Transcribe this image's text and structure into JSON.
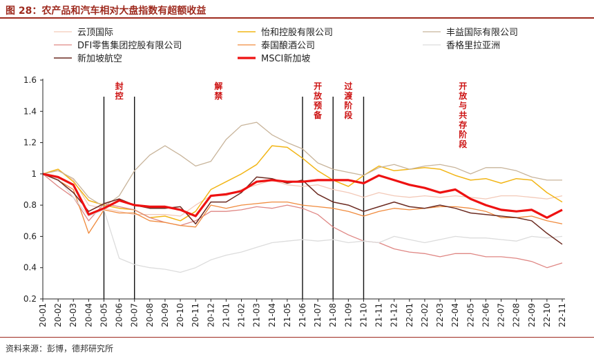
{
  "title": "图 28：农产品和汽车相对大盘指数有超额收益",
  "source": "资料来源：彭博，德邦研究所",
  "chart_data": {
    "type": "line",
    "title": "图 28：农产品和汽车相对大盘指数有超额收益",
    "xlabel": "",
    "ylabel": "",
    "ylim": [
      0.2,
      1.6
    ],
    "yticks": [
      0.2,
      0.4,
      0.6,
      0.8,
      1,
      1.2,
      1.4,
      1.6
    ],
    "x": [
      "20-01",
      "20-02",
      "20-03",
      "20-04",
      "20-05",
      "20-06",
      "20-07",
      "20-08",
      "20-09",
      "20-10",
      "20-11",
      "20-12",
      "21-01",
      "21-02",
      "21-03",
      "21-04",
      "21-05",
      "21-06",
      "21-07",
      "21-08",
      "21-09",
      "21-10",
      "21-11",
      "21-12",
      "22-01",
      "22-02",
      "22-03",
      "22-04",
      "22-05",
      "22-06",
      "22-07",
      "22-08",
      "22-09",
      "22-10",
      "22-11"
    ],
    "grid": false,
    "legend_position": "top",
    "phases": [
      {
        "label": "封控",
        "start": 4,
        "end": 6
      },
      {
        "label": "解禁",
        "start": 6,
        "end": 17
      },
      {
        "label": "开放预备",
        "start": 17,
        "end": 19
      },
      {
        "label": "过渡阶段",
        "start": 19,
        "end": 21
      },
      {
        "label": "开放与共存阶段",
        "start": 21,
        "end": 34
      }
    ],
    "series": [
      {
        "name": "云顶国际",
        "color": "#f3c9b8",
        "width": 1.3,
        "values": [
          1.0,
          1.03,
          0.96,
          0.8,
          0.78,
          0.76,
          0.74,
          0.74,
          0.74,
          0.73,
          0.8,
          0.86,
          0.86,
          0.9,
          0.93,
          0.96,
          0.93,
          0.92,
          0.93,
          0.9,
          0.88,
          0.85,
          0.88,
          0.86,
          0.85,
          0.86,
          0.85,
          0.86,
          0.85,
          0.84,
          0.86,
          0.86,
          0.85,
          0.84,
          0.86
        ]
      },
      {
        "name": "怡和控股有限公司",
        "color": "#f2b515",
        "width": 1.5,
        "values": [
          1.0,
          1.03,
          0.95,
          0.83,
          0.8,
          0.78,
          0.77,
          0.72,
          0.73,
          0.7,
          0.76,
          0.9,
          0.95,
          1.0,
          1.06,
          1.18,
          1.17,
          1.1,
          1.02,
          0.96,
          0.92,
          0.99,
          1.05,
          1.02,
          1.03,
          1.04,
          1.03,
          0.99,
          0.96,
          0.97,
          0.94,
          0.97,
          0.96,
          0.88,
          0.82
        ]
      },
      {
        "name": "丰益国际有限公司",
        "color": "#c8b49a",
        "width": 1.3,
        "values": [
          1.0,
          1.02,
          0.97,
          0.85,
          0.79,
          0.86,
          1.02,
          1.12,
          1.18,
          1.12,
          1.05,
          1.08,
          1.22,
          1.31,
          1.33,
          1.25,
          1.2,
          1.16,
          1.07,
          1.03,
          1.01,
          0.99,
          1.04,
          1.06,
          1.03,
          1.05,
          1.06,
          1.04,
          1.0,
          1.04,
          1.04,
          1.02,
          0.98,
          0.96,
          0.96
        ]
      },
      {
        "name": "DFI零售集团控股有限公司",
        "color": "#df8683",
        "width": 1.3,
        "values": [
          1.0,
          0.92,
          0.85,
          0.7,
          0.81,
          0.79,
          0.77,
          0.72,
          0.69,
          0.67,
          0.7,
          0.76,
          0.76,
          0.77,
          0.79,
          0.78,
          0.8,
          0.78,
          0.74,
          0.66,
          0.61,
          0.57,
          0.56,
          0.52,
          0.5,
          0.49,
          0.47,
          0.49,
          0.49,
          0.47,
          0.47,
          0.46,
          0.44,
          0.4,
          0.43
        ]
      },
      {
        "name": "泰国酿酒公司",
        "color": "#f08a3c",
        "width": 1.3,
        "values": [
          1.0,
          0.96,
          0.9,
          0.62,
          0.77,
          0.75,
          0.75,
          0.7,
          0.69,
          0.67,
          0.66,
          0.8,
          0.78,
          0.8,
          0.81,
          0.82,
          0.82,
          0.8,
          0.79,
          0.78,
          0.76,
          0.73,
          0.76,
          0.78,
          0.77,
          0.78,
          0.79,
          0.79,
          0.78,
          0.76,
          0.72,
          0.72,
          0.73,
          0.7,
          0.68
        ]
      },
      {
        "name": "香格里拉亚洲",
        "color": "#dcdcdc",
        "width": 1.3,
        "values": [
          1.0,
          0.97,
          0.85,
          0.73,
          0.77,
          0.46,
          0.42,
          0.4,
          0.39,
          0.37,
          0.4,
          0.45,
          0.48,
          0.5,
          0.53,
          0.56,
          0.57,
          0.58,
          0.57,
          0.58,
          0.56,
          0.57,
          0.56,
          0.6,
          0.58,
          0.56,
          0.58,
          0.6,
          0.59,
          0.59,
          0.58,
          0.57,
          0.6,
          0.59,
          0.6
        ]
      },
      {
        "name": "新加坡航空",
        "color": "#6b2a20",
        "width": 1.5,
        "values": [
          1.0,
          0.96,
          0.88,
          0.76,
          0.81,
          0.84,
          0.8,
          0.78,
          0.78,
          0.79,
          0.68,
          0.82,
          0.82,
          0.88,
          0.98,
          0.97,
          0.94,
          0.96,
          0.87,
          0.82,
          0.8,
          0.76,
          0.79,
          0.82,
          0.79,
          0.78,
          0.8,
          0.78,
          0.75,
          0.74,
          0.73,
          0.72,
          0.7,
          0.62,
          0.55
        ]
      },
      {
        "name": "MSCI新加坡",
        "color": "#ee1111",
        "width": 3.2,
        "values": [
          1.0,
          0.98,
          0.93,
          0.74,
          0.78,
          0.83,
          0.8,
          0.79,
          0.79,
          0.77,
          0.73,
          0.86,
          0.87,
          0.89,
          0.95,
          0.96,
          0.95,
          0.95,
          0.96,
          0.96,
          0.96,
          0.94,
          0.99,
          0.96,
          0.93,
          0.91,
          0.88,
          0.9,
          0.84,
          0.8,
          0.77,
          0.76,
          0.77,
          0.72,
          0.77
        ]
      }
    ]
  }
}
